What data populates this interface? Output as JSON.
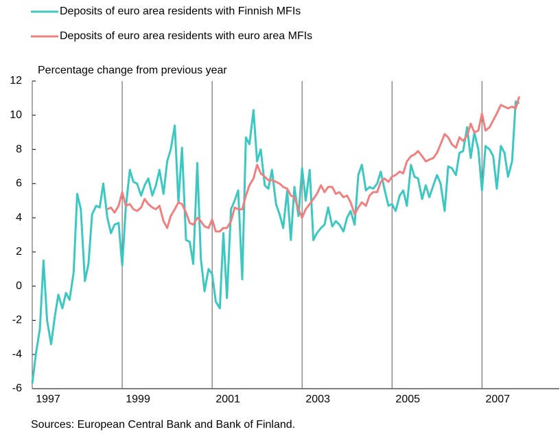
{
  "chart_data": {
    "type": "line",
    "title": "Percentage change from previous year",
    "source": "Sources: European Central Bank and  Bank of Finland.",
    "x": [
      1997,
      1997.08,
      1997.17,
      1997.25,
      1997.33,
      1997.42,
      1997.5,
      1997.58,
      1997.67,
      1997.75,
      1997.83,
      1997.92,
      1998,
      1998.08,
      1998.17,
      1998.25,
      1998.33,
      1998.42,
      1998.5,
      1998.58,
      1998.67,
      1998.75,
      1998.83,
      1998.92,
      1999,
      1999.08,
      1999.17,
      1999.25,
      1999.33,
      1999.42,
      1999.5,
      1999.58,
      1999.67,
      1999.75,
      1999.83,
      1999.92,
      2000,
      2000.08,
      2000.17,
      2000.25,
      2000.33,
      2000.42,
      2000.5,
      2000.58,
      2000.67,
      2000.75,
      2000.83,
      2000.92,
      2001,
      2001.08,
      2001.17,
      2001.25,
      2001.33,
      2001.42,
      2001.5,
      2001.58,
      2001.67,
      2001.75,
      2001.83,
      2001.92,
      2002,
      2002.08,
      2002.17,
      2002.25,
      2002.33,
      2002.42,
      2002.5,
      2002.58,
      2002.67,
      2002.75,
      2002.83,
      2002.92,
      2003,
      2003.08,
      2003.17,
      2003.25,
      2003.33,
      2003.42,
      2003.5,
      2003.58,
      2003.67,
      2003.75,
      2003.83,
      2003.92,
      2004,
      2004.08,
      2004.17,
      2004.25,
      2004.33,
      2004.42,
      2004.5,
      2004.58,
      2004.67,
      2004.75,
      2004.83,
      2004.92,
      2005,
      2005.08,
      2005.17,
      2005.25,
      2005.33,
      2005.42,
      2005.5,
      2005.58,
      2005.67,
      2005.75,
      2005.83,
      2005.92,
      2006,
      2006.08,
      2006.17,
      2006.25,
      2006.33,
      2006.42,
      2006.5,
      2006.58,
      2006.67,
      2006.75,
      2006.83,
      2006.92,
      2007,
      2007.08,
      2007.17,
      2007.25,
      2007.33,
      2007.42,
      2007.5,
      2007.58,
      2007.67,
      2007.75,
      2007.83
    ],
    "series": [
      {
        "name": "Deposits of euro area residents with Finnish MFIs",
        "color": "#3cc8c0",
        "values": [
          -5.7,
          -4,
          -2.5,
          1.5,
          -2,
          -3.4,
          -1.8,
          -0.5,
          -1.3,
          -0.4,
          -0.8,
          0.8,
          5.4,
          4.5,
          0.3,
          1.3,
          4.2,
          4.7,
          4.6,
          6.0,
          4.0,
          3.1,
          3.6,
          3.7,
          1.2,
          4.6,
          6.8,
          6.1,
          6.0,
          5.3,
          5.9,
          6.3,
          5.3,
          5.9,
          6.8,
          5.4,
          7.3,
          8.0,
          9.4,
          4.9,
          8.1,
          2.7,
          2.6,
          1.3,
          7.2,
          1.6,
          -0.3,
          1.0,
          0.7,
          -0.9,
          -1.3,
          3.1,
          -0.7,
          4.5,
          5.0,
          5.6,
          0.4,
          8.7,
          8.3,
          10.3,
          7.3,
          8.0,
          5.9,
          5.7,
          6.8,
          4.8,
          4.2,
          3.4,
          5.6,
          2.7,
          5.8,
          4.1,
          6.9,
          5.0,
          6.8,
          2.7,
          3.1,
          3.4,
          3.6,
          4.6,
          3.5,
          3.8,
          3.6,
          3.2,
          4.0,
          4.4,
          3.6,
          6.5,
          7.1,
          5.6,
          5.8,
          5.7,
          6.0,
          6.7,
          5.7,
          4.7,
          4.8,
          4.4,
          5.3,
          5.6,
          4.7,
          7.1,
          6.4,
          6.3,
          5.1,
          5.9,
          5.2,
          5.9,
          6.5,
          6.0,
          4.4,
          7.0,
          6.9,
          6.5,
          7.8,
          7.9,
          9.3,
          7.5,
          9.0,
          8.0,
          5.6,
          8.2,
          8.0,
          7.6,
          5.7,
          8.2,
          7.8,
          6.4,
          7.3,
          10.8,
          10.7
        ]
      },
      {
        "name": "Deposits of euro area residents with euro area MFIs",
        "color": "#f08080",
        "values": [
          null,
          null,
          null,
          null,
          null,
          null,
          null,
          null,
          null,
          null,
          null,
          null,
          null,
          null,
          null,
          null,
          null,
          null,
          null,
          null,
          4.5,
          4.6,
          4.3,
          4.7,
          5.5,
          4.7,
          4.8,
          4.5,
          4.4,
          4.6,
          5.1,
          4.8,
          4.6,
          4.5,
          4.7,
          3.8,
          3.4,
          4.1,
          4.5,
          4.9,
          4.8,
          4.3,
          3.7,
          3.6,
          4.0,
          3.8,
          3.5,
          3.4,
          3.9,
          3.2,
          3.2,
          3.4,
          3.4,
          3.8,
          4.6,
          4.5,
          4.5,
          5.3,
          5.9,
          6.3,
          7.1,
          6.6,
          6.4,
          6.2,
          6.2,
          6.1,
          6.0,
          5.8,
          5.7,
          5.3,
          5.2,
          4.5,
          4.0,
          4.5,
          4.8,
          5.1,
          5.4,
          5.9,
          5.5,
          5.8,
          5.8,
          5.4,
          5.5,
          5.2,
          5.3,
          4.9,
          4.2,
          4.6,
          4.9,
          4.7,
          5.3,
          5.5,
          5.5,
          6.1,
          6.3,
          6.1,
          6.4,
          6.5,
          6.7,
          6.6,
          7.3,
          7.6,
          7.7,
          7.9,
          7.6,
          7.3,
          7.4,
          7.5,
          7.8,
          8.3,
          8.9,
          8.7,
          8.3,
          8.1,
          8.7,
          8.5,
          8.8,
          9.5,
          9.0,
          9.1,
          10.1,
          9.1,
          9.3,
          9.7,
          10.1,
          10.6,
          10.5,
          10.4,
          10.5,
          10.4,
          11.1
        ]
      }
    ],
    "xlim": [
      1997,
      2008.72
    ],
    "xticks": [
      1997,
      1999,
      2001,
      2003,
      2005,
      2007
    ],
    "ylim": [
      -6,
      12
    ],
    "yticks": [
      -6,
      -4,
      -2,
      0,
      2,
      4,
      6,
      8,
      10,
      12
    ],
    "grid": true
  }
}
